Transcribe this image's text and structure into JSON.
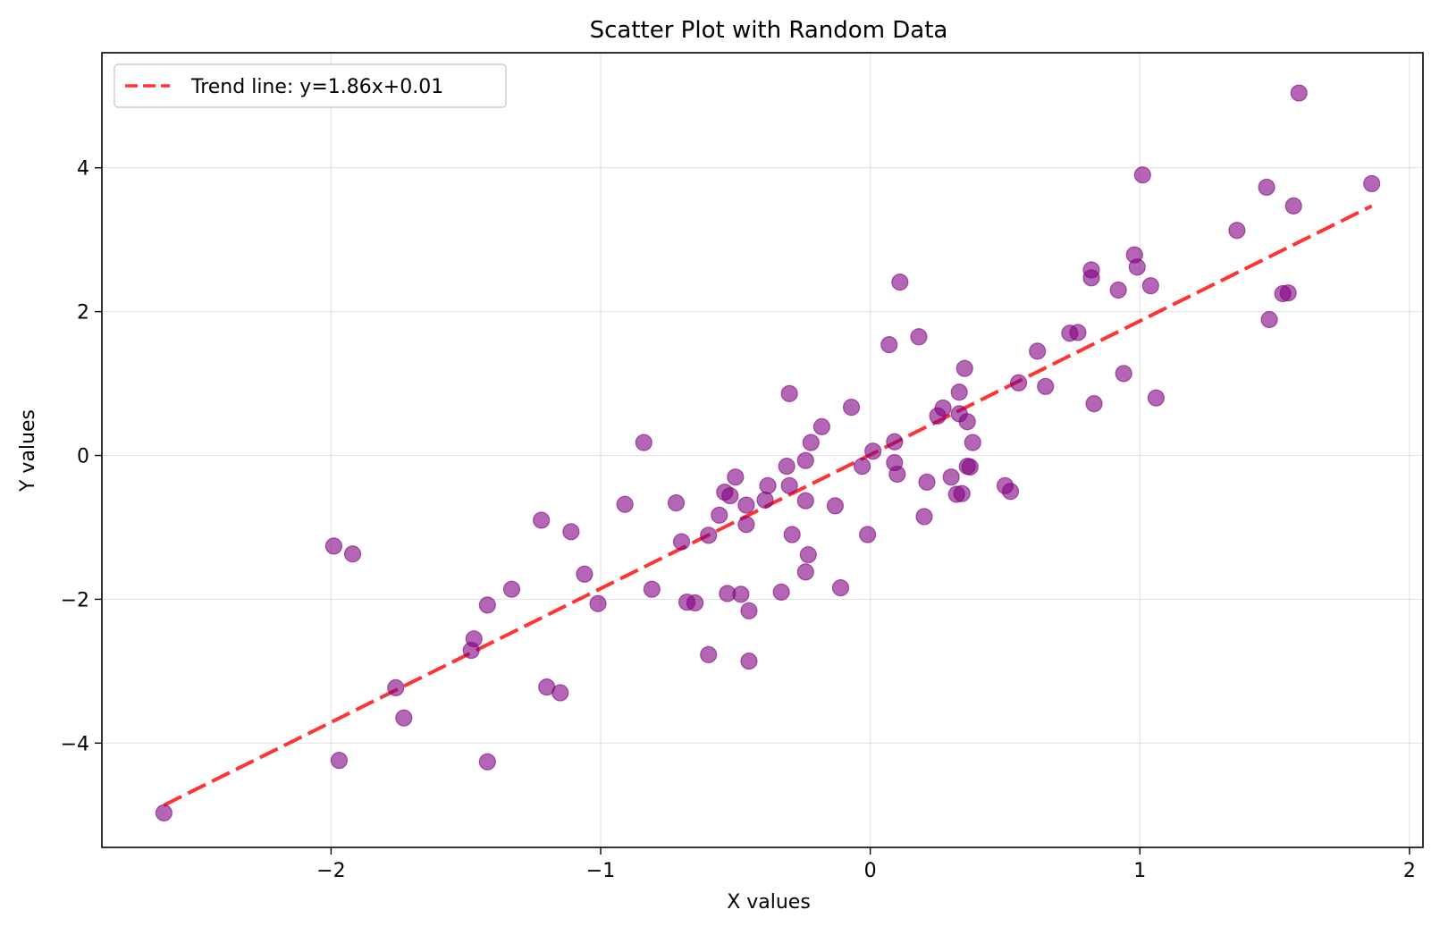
{
  "chart_data": {
    "type": "scatter",
    "title": "Scatter Plot with Random Data",
    "xlabel": "X values",
    "ylabel": "Y values",
    "xlim": [
      -2.85,
      2.05
    ],
    "ylim": [
      -5.45,
      5.6
    ],
    "x_ticks": [
      -2,
      -1,
      0,
      1,
      2
    ],
    "x_tick_labels": [
      "−2",
      "−1",
      "0",
      "1",
      "2"
    ],
    "y_ticks": [
      -4,
      -2,
      0,
      2,
      4
    ],
    "y_tick_labels": [
      "−4",
      "−2",
      "0",
      "2",
      "4"
    ],
    "grid": true,
    "legend_position": "top-left",
    "series": [
      {
        "type": "scatter",
        "color": "#800080",
        "opacity": 0.6,
        "points": [
          [
            -2.62,
            -4.97
          ],
          [
            -1.99,
            -1.26
          ],
          [
            -1.97,
            -4.24
          ],
          [
            -1.92,
            -1.37
          ],
          [
            -1.76,
            -3.23
          ],
          [
            -1.73,
            -3.65
          ],
          [
            -1.47,
            -2.55
          ],
          [
            -1.48,
            -2.71
          ],
          [
            -1.42,
            -2.08
          ],
          [
            -1.42,
            -4.26
          ],
          [
            -1.33,
            -1.86
          ],
          [
            -1.22,
            -0.9
          ],
          [
            -1.2,
            -3.22
          ],
          [
            -1.15,
            -3.3
          ],
          [
            -1.11,
            -1.06
          ],
          [
            -1.06,
            -1.65
          ],
          [
            -1.01,
            -2.06
          ],
          [
            -0.91,
            -0.68
          ],
          [
            -0.84,
            0.18
          ],
          [
            -0.81,
            -1.86
          ],
          [
            -0.72,
            -0.66
          ],
          [
            -0.7,
            -1.2
          ],
          [
            -0.68,
            -2.04
          ],
          [
            -0.65,
            -2.05
          ],
          [
            -0.6,
            -1.11
          ],
          [
            -0.6,
            -2.77
          ],
          [
            -0.56,
            -0.83
          ],
          [
            -0.54,
            -0.51
          ],
          [
            -0.53,
            -1.92
          ],
          [
            -0.52,
            -0.56
          ],
          [
            -0.5,
            -0.3
          ],
          [
            -0.48,
            -1.93
          ],
          [
            -0.46,
            -0.69
          ],
          [
            -0.46,
            -0.96
          ],
          [
            -0.45,
            -2.16
          ],
          [
            -0.45,
            -2.86
          ],
          [
            -0.39,
            -0.62
          ],
          [
            -0.38,
            -0.42
          ],
          [
            -0.33,
            -1.9
          ],
          [
            -0.31,
            -0.15
          ],
          [
            -0.3,
            0.86
          ],
          [
            -0.3,
            -0.42
          ],
          [
            -0.29,
            -1.1
          ],
          [
            -0.24,
            -0.07
          ],
          [
            -0.24,
            -0.63
          ],
          [
            -0.24,
            -1.62
          ],
          [
            -0.23,
            -1.38
          ],
          [
            -0.22,
            0.18
          ],
          [
            -0.18,
            0.4
          ],
          [
            -0.13,
            -0.7
          ],
          [
            -0.11,
            -1.84
          ],
          [
            -0.07,
            0.67
          ],
          [
            -0.03,
            -0.15
          ],
          [
            -0.01,
            -1.1
          ],
          [
            0.01,
            0.06
          ],
          [
            0.07,
            1.54
          ],
          [
            0.09,
            0.19
          ],
          [
            0.09,
            -0.1
          ],
          [
            0.1,
            -0.26
          ],
          [
            0.11,
            2.41
          ],
          [
            0.18,
            1.65
          ],
          [
            0.2,
            -0.85
          ],
          [
            0.21,
            -0.37
          ],
          [
            0.25,
            0.55
          ],
          [
            0.27,
            0.66
          ],
          [
            0.3,
            -0.3
          ],
          [
            0.32,
            -0.54
          ],
          [
            0.33,
            0.88
          ],
          [
            0.33,
            0.58
          ],
          [
            0.34,
            -0.53
          ],
          [
            0.35,
            1.21
          ],
          [
            0.36,
            -0.15
          ],
          [
            0.36,
            0.47
          ],
          [
            0.37,
            -0.16
          ],
          [
            0.38,
            0.18
          ],
          [
            0.5,
            -0.42
          ],
          [
            0.52,
            -0.5
          ],
          [
            0.55,
            1.01
          ],
          [
            0.62,
            1.45
          ],
          [
            0.65,
            0.96
          ],
          [
            0.74,
            1.7
          ],
          [
            0.77,
            1.71
          ],
          [
            0.82,
            2.58
          ],
          [
            0.82,
            2.47
          ],
          [
            0.83,
            0.72
          ],
          [
            0.92,
            2.3
          ],
          [
            0.94,
            1.14
          ],
          [
            0.98,
            2.79
          ],
          [
            0.99,
            2.62
          ],
          [
            1.01,
            3.9
          ],
          [
            1.04,
            2.36
          ],
          [
            1.06,
            0.8
          ],
          [
            1.36,
            3.13
          ],
          [
            1.47,
            3.73
          ],
          [
            1.48,
            1.89
          ],
          [
            1.53,
            2.25
          ],
          [
            1.55,
            2.26
          ],
          [
            1.57,
            3.47
          ],
          [
            1.59,
            5.04
          ],
          [
            1.86,
            3.78
          ]
        ]
      },
      {
        "type": "line",
        "name": "Trend line: y=1.86x+0.01",
        "color": "#ff0000",
        "opacity": 0.8,
        "dash": "dashed",
        "slope": 1.86,
        "intercept": 0.01,
        "x_range": [
          -2.62,
          1.86
        ]
      }
    ]
  }
}
